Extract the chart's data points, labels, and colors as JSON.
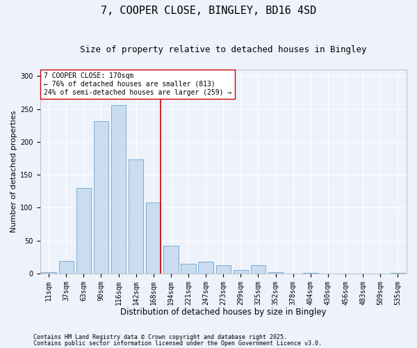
{
  "title": "7, COOPER CLOSE, BINGLEY, BD16 4SD",
  "subtitle": "Size of property relative to detached houses in Bingley",
  "xlabel": "Distribution of detached houses by size in Bingley",
  "ylabel": "Number of detached properties",
  "bar_color": "#c9dcf0",
  "bar_edge_color": "#7baed4",
  "categories": [
    "11sqm",
    "37sqm",
    "63sqm",
    "90sqm",
    "116sqm",
    "142sqm",
    "168sqm",
    "194sqm",
    "221sqm",
    "247sqm",
    "273sqm",
    "299sqm",
    "325sqm",
    "352sqm",
    "378sqm",
    "404sqm",
    "430sqm",
    "456sqm",
    "483sqm",
    "509sqm",
    "535sqm"
  ],
  "values": [
    2,
    19,
    130,
    232,
    256,
    173,
    108,
    42,
    15,
    18,
    13,
    5,
    13,
    2,
    0,
    1,
    0,
    0,
    0,
    0,
    1
  ],
  "vline_index": 6,
  "vline_color": "#cc0000",
  "ylim": [
    0,
    310
  ],
  "yticks": [
    0,
    50,
    100,
    150,
    200,
    250,
    300
  ],
  "annotation_text": "7 COOPER CLOSE: 170sqm\n← 76% of detached houses are smaller (813)\n24% of semi-detached houses are larger (259) →",
  "annotation_box_facecolor": "#ffffff",
  "annotation_box_edgecolor": "#cc0000",
  "footnote1": "Contains HM Land Registry data © Crown copyright and database right 2025.",
  "footnote2": "Contains public sector information licensed under the Open Government Licence v3.0.",
  "background_color": "#edf2fb",
  "grid_color": "#ffffff",
  "title_fontsize": 11,
  "subtitle_fontsize": 9,
  "xlabel_fontsize": 8.5,
  "ylabel_fontsize": 8,
  "tick_fontsize": 7,
  "annotation_fontsize": 7,
  "footnote_fontsize": 6
}
